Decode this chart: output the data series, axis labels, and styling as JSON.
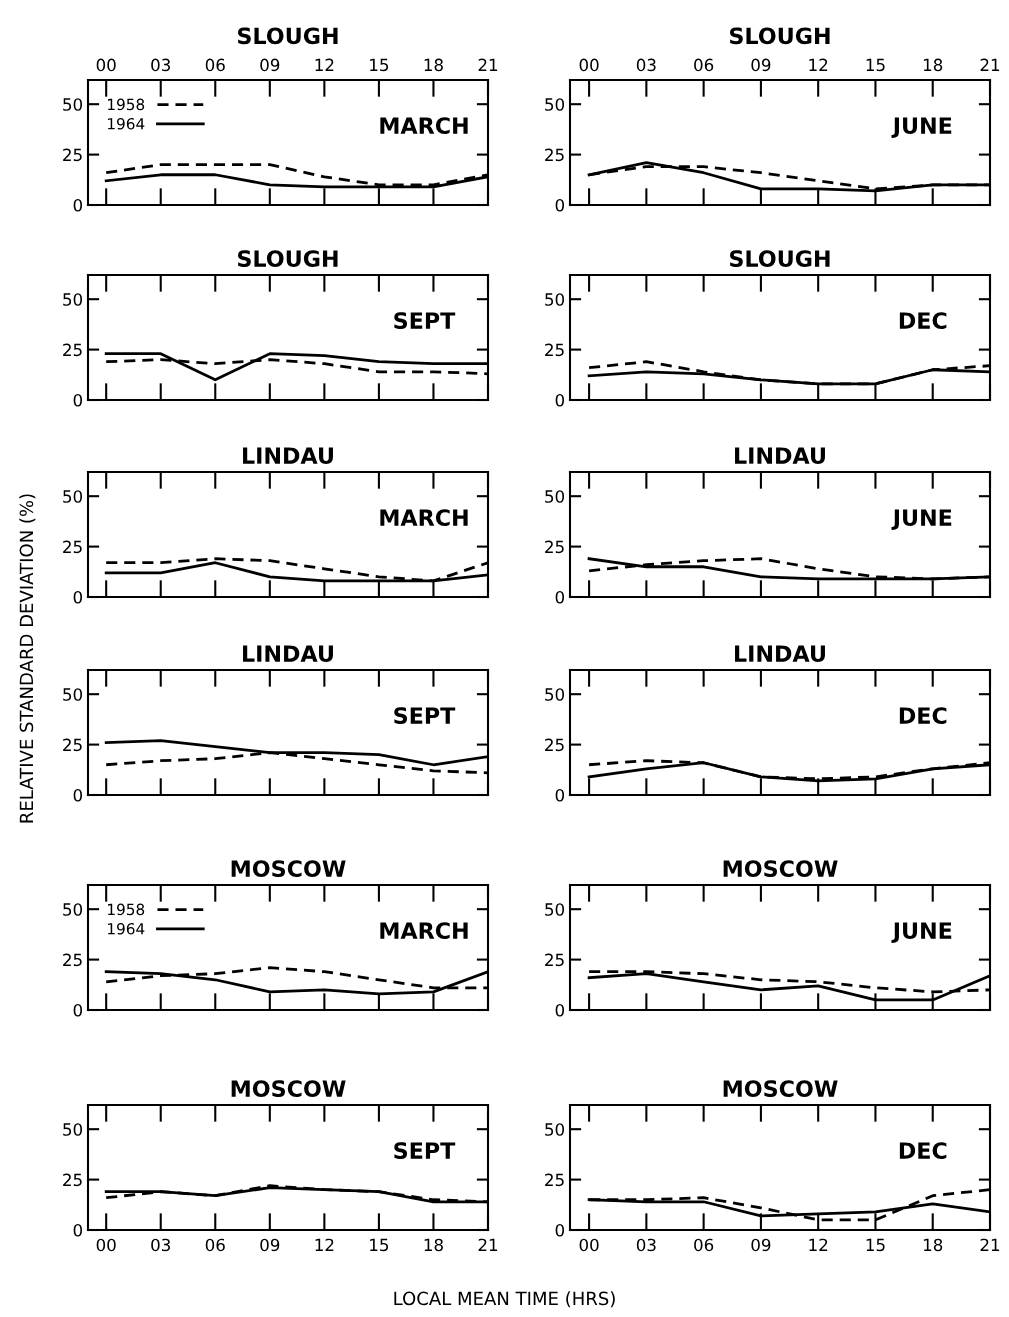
{
  "chart_data": [
    {
      "type": "line",
      "title": "SLOUGH",
      "annotations": [
        "MARCH"
      ],
      "legend": "top left",
      "tick_labels": "y",
      "xlim": [
        -1,
        21
      ],
      "ylim": [
        0,
        62
      ],
      "yticks": [
        0,
        25,
        50
      ],
      "xticks": [
        {
          "value": 0,
          "label": null
        },
        {
          "value": 3,
          "label": null
        },
        {
          "value": 6,
          "label": null
        },
        {
          "value": 9,
          "label": null
        },
        {
          "value": 12,
          "label": null
        },
        {
          "value": 15,
          "label": null
        },
        {
          "value": 18,
          "label": null
        },
        {
          "value": 21,
          "label": null
        }
      ],
      "x2lim": [
        -1,
        21
      ],
      "x2ticks": [
        {
          "value": 0,
          "label": "00"
        },
        {
          "value": 3,
          "label": "03"
        },
        {
          "value": 6,
          "label": "06"
        },
        {
          "value": 9,
          "label": "09"
        },
        12,
        15,
        18,
        21
      ],
      "x": [
        0,
        3,
        6,
        9,
        12,
        15,
        18,
        21
      ],
      "series": [
        {
          "name": "1958",
          "color": "#000000",
          "line_style": "dashed",
          "values": [
            16,
            20,
            20,
            20,
            14,
            10,
            10,
            15
          ]
        },
        {
          "name": "1964",
          "color": "#000000",
          "line_style": "solid",
          "values": [
            12,
            15,
            15,
            10,
            9,
            9,
            9,
            14
          ]
        }
      ]
    },
    {
      "type": "line",
      "title": "SLOUGH",
      "annotations": [
        "JUNE"
      ],
      "tick_labels": "y",
      "xlim": [
        -1,
        21
      ],
      "ylim": [
        0,
        62
      ],
      "yticks": [
        0,
        25,
        50
      ],
      "xticks": [
        {
          "value": 0,
          "label": null
        },
        {
          "value": 3,
          "label": null
        },
        {
          "value": 6,
          "label": null
        },
        {
          "value": 9,
          "label": null
        },
        {
          "value": 12,
          "label": null
        },
        {
          "value": 15,
          "label": null
        },
        {
          "value": 18,
          "label": null
        },
        {
          "value": 21,
          "label": null
        }
      ],
      "x2lim": [
        -1,
        21
      ],
      "x2ticks": [
        {
          "value": 0,
          "label": "00"
        },
        {
          "value": 3,
          "label": "03"
        },
        {
          "value": 6,
          "label": "06"
        },
        {
          "value": 9,
          "label": "09"
        },
        12,
        15,
        18,
        21
      ],
      "x": [
        0,
        3,
        6,
        9,
        12,
        15,
        18,
        21
      ],
      "series": [
        {
          "color": "#000000",
          "line_style": "dashed",
          "values": [
            15,
            19,
            19,
            16,
            12,
            8,
            10,
            10
          ]
        },
        {
          "color": "#000000",
          "line_style": "solid",
          "values": [
            15,
            21,
            16,
            8,
            8,
            7,
            10,
            10
          ]
        }
      ]
    },
    {
      "type": "line",
      "title": "SLOUGH",
      "annotations": [
        "SEPT"
      ],
      "tick_labels": "y",
      "xlim": [
        -1,
        21
      ],
      "ylim": [
        0,
        62
      ],
      "yticks": [
        0,
        25,
        50
      ],
      "xticks": [
        {
          "value": 0,
          "label": null
        },
        {
          "value": 3,
          "label": null
        },
        {
          "value": 6,
          "label": null
        },
        {
          "value": 9,
          "label": null
        },
        {
          "value": 12,
          "label": null
        },
        {
          "value": 15,
          "label": null
        },
        {
          "value": 18,
          "label": null
        },
        {
          "value": 21,
          "label": null
        }
      ],
      "x": [
        0,
        3,
        6,
        9,
        12,
        15,
        18,
        21
      ],
      "series": [
        {
          "color": "#000000",
          "line_style": "dashed",
          "values": [
            19,
            20,
            18,
            20,
            18,
            14,
            14,
            13
          ]
        },
        {
          "color": "#000000",
          "line_style": "solid",
          "values": [
            23,
            23,
            10,
            23,
            22,
            19,
            18,
            18
          ]
        }
      ]
    },
    {
      "type": "line",
      "title": "SLOUGH",
      "annotations": [
        "DEC"
      ],
      "tick_labels": "y",
      "xlim": [
        -1,
        21
      ],
      "ylim": [
        0,
        62
      ],
      "yticks": [
        0,
        25,
        50
      ],
      "xticks": [
        {
          "value": 0,
          "label": null
        },
        {
          "value": 3,
          "label": null
        },
        {
          "value": 6,
          "label": null
        },
        {
          "value": 9,
          "label": null
        },
        {
          "value": 12,
          "label": null
        },
        {
          "value": 15,
          "label": null
        },
        {
          "value": 18,
          "label": null
        },
        {
          "value": 21,
          "label": null
        }
      ],
      "x": [
        0,
        3,
        6,
        9,
        12,
        15,
        18,
        21
      ],
      "series": [
        {
          "color": "#000000",
          "line_style": "dashed",
          "values": [
            16,
            19,
            14,
            10,
            8,
            8,
            15,
            17
          ]
        },
        {
          "color": "#000000",
          "line_style": "solid",
          "values": [
            12,
            14,
            13,
            10,
            8,
            8,
            15,
            14
          ]
        }
      ]
    },
    {
      "type": "line",
      "title": "LINDAU",
      "annotations": [
        "MARCH"
      ],
      "tick_labels": "y",
      "xlim": [
        -1,
        21
      ],
      "ylim": [
        0,
        62
      ],
      "yticks": [
        0,
        25,
        50
      ],
      "xticks": [
        {
          "value": 0,
          "label": null
        },
        {
          "value": 3,
          "label": null
        },
        {
          "value": 6,
          "label": null
        },
        {
          "value": 9,
          "label": null
        },
        {
          "value": 12,
          "label": null
        },
        {
          "value": 15,
          "label": null
        },
        {
          "value": 18,
          "label": null
        },
        {
          "value": 21,
          "label": null
        }
      ],
      "x": [
        0,
        3,
        6,
        9,
        12,
        15,
        18,
        21
      ],
      "series": [
        {
          "color": "#000000",
          "line_style": "dashed",
          "values": [
            17,
            17,
            19,
            18,
            14,
            10,
            8,
            17
          ]
        },
        {
          "color": "#000000",
          "line_style": "solid",
          "values": [
            12,
            12,
            17,
            10,
            8,
            8,
            8,
            11
          ]
        }
      ]
    },
    {
      "type": "line",
      "title": "LINDAU",
      "annotations": [
        "JUNE"
      ],
      "tick_labels": "y",
      "xlim": [
        -1,
        21
      ],
      "ylim": [
        0,
        62
      ],
      "yticks": [
        0,
        25,
        50
      ],
      "xticks": [
        {
          "value": 0,
          "label": null
        },
        {
          "value": 3,
          "label": null
        },
        {
          "value": 6,
          "label": null
        },
        {
          "value": 9,
          "label": null
        },
        {
          "value": 12,
          "label": null
        },
        {
          "value": 15,
          "label": null
        },
        {
          "value": 18,
          "label": null
        },
        {
          "value": 21,
          "label": null
        }
      ],
      "x": [
        0,
        3,
        6,
        9,
        12,
        15,
        18,
        21
      ],
      "series": [
        {
          "color": "#000000",
          "line_style": "dashed",
          "values": [
            13,
            16,
            18,
            19,
            14,
            10,
            9,
            10
          ]
        },
        {
          "color": "#000000",
          "line_style": "solid",
          "values": [
            19,
            15,
            15,
            10,
            9,
            9,
            9,
            10
          ]
        }
      ]
    },
    {
      "type": "line",
      "title": "LINDAU",
      "annotations": [
        "SEPT"
      ],
      "ylabel": "RELATIVE STANDARD DEVIATION (%)",
      "tick_labels": "y",
      "xlim": [
        -1,
        21
      ],
      "ylim": [
        0,
        62
      ],
      "yticks": [
        0,
        25,
        50
      ],
      "xticks": [
        {
          "value": 0,
          "label": null
        },
        {
          "value": 3,
          "label": null
        },
        {
          "value": 6,
          "label": null
        },
        {
          "value": 9,
          "label": null
        },
        {
          "value": 12,
          "label": null
        },
        {
          "value": 15,
          "label": null
        },
        {
          "value": 18,
          "label": null
        },
        {
          "value": 21,
          "label": null
        }
      ],
      "x": [
        0,
        3,
        6,
        9,
        12,
        15,
        18,
        21
      ],
      "series": [
        {
          "color": "#000000",
          "line_style": "dashed",
          "values": [
            15,
            17,
            18,
            21,
            18,
            15,
            12,
            11
          ]
        },
        {
          "color": "#000000",
          "line_style": "solid",
          "values": [
            26,
            27,
            24,
            21,
            21,
            20,
            15,
            19
          ]
        }
      ]
    },
    {
      "type": "line",
      "title": "LINDAU",
      "annotations": [
        "DEC"
      ],
      "tick_labels": "y",
      "xlim": [
        -1,
        21
      ],
      "ylim": [
        0,
        62
      ],
      "yticks": [
        0,
        25,
        50
      ],
      "xticks": [
        {
          "value": 0,
          "label": null
        },
        {
          "value": 3,
          "label": null
        },
        {
          "value": 6,
          "label": null
        },
        {
          "value": 9,
          "label": null
        },
        {
          "value": 12,
          "label": null
        },
        {
          "value": 15,
          "label": null
        },
        {
          "value": 18,
          "label": null
        },
        {
          "value": 21,
          "label": null
        }
      ],
      "x": [
        0,
        3,
        6,
        9,
        12,
        15,
        18,
        21
      ],
      "series": [
        {
          "color": "#000000",
          "line_style": "dashed",
          "values": [
            15,
            17,
            16,
            9,
            8,
            9,
            13,
            16
          ]
        },
        {
          "color": "#000000",
          "line_style": "solid",
          "values": [
            9,
            13,
            16,
            9,
            7,
            8,
            13,
            15
          ]
        }
      ]
    },
    {
      "type": "line",
      "title": "MOSCOW",
      "annotations": [
        "MARCH"
      ],
      "legend": "top left",
      "tick_labels": "y",
      "xlim": [
        -1,
        21
      ],
      "ylim": [
        0,
        62
      ],
      "yticks": [
        0,
        25,
        50
      ],
      "xticks": [
        {
          "value": 0,
          "label": null
        },
        {
          "value": 3,
          "label": null
        },
        {
          "value": 6,
          "label": null
        },
        {
          "value": 9,
          "label": null
        },
        {
          "value": 12,
          "label": null
        },
        {
          "value": 15,
          "label": null
        },
        {
          "value": 18,
          "label": null
        },
        {
          "value": 21,
          "label": null
        }
      ],
      "x": [
        0,
        3,
        6,
        9,
        12,
        15,
        18,
        21
      ],
      "series": [
        {
          "name": "1958",
          "color": "#000000",
          "line_style": "dashed",
          "values": [
            14,
            17,
            18,
            21,
            19,
            15,
            11,
            11
          ]
        },
        {
          "name": "1964",
          "color": "#000000",
          "line_style": "solid",
          "values": [
            19,
            18,
            15,
            9,
            10,
            8,
            9,
            19
          ]
        }
      ]
    },
    {
      "type": "line",
      "title": "MOSCOW",
      "annotations": [
        "JUNE"
      ],
      "tick_labels": "y",
      "xlim": [
        -1,
        21
      ],
      "ylim": [
        0,
        62
      ],
      "yticks": [
        0,
        25,
        50
      ],
      "xticks": [
        {
          "value": 0,
          "label": null
        },
        {
          "value": 3,
          "label": null
        },
        {
          "value": 6,
          "label": null
        },
        {
          "value": 9,
          "label": null
        },
        {
          "value": 12,
          "label": null
        },
        {
          "value": 15,
          "label": null
        },
        {
          "value": 18,
          "label": null
        },
        {
          "value": 21,
          "label": null
        }
      ],
      "x": [
        0,
        3,
        6,
        9,
        12,
        15,
        18,
        21
      ],
      "series": [
        {
          "color": "#000000",
          "line_style": "dashed",
          "values": [
            19,
            19,
            18,
            15,
            14,
            11,
            9,
            10
          ]
        },
        {
          "color": "#000000",
          "line_style": "solid",
          "values": [
            16,
            18,
            14,
            10,
            12,
            5,
            5,
            17
          ]
        }
      ]
    },
    {
      "type": "line",
      "title": "MOSCOW",
      "annotations": [
        "SEPT"
      ],
      "xlabel": "LOCAL MEAN TIME (HRS)",
      "xlim": [
        -1,
        21
      ],
      "ylim": [
        0,
        62
      ],
      "yticks": [
        0,
        25,
        50
      ],
      "xticks": [
        {
          "value": 0,
          "label": "00"
        },
        {
          "value": 3,
          "label": "03"
        },
        {
          "value": 6,
          "label": "06"
        },
        {
          "value": 9,
          "label": "09"
        },
        12,
        15,
        18,
        21
      ],
      "x": [
        0,
        3,
        6,
        9,
        12,
        15,
        18,
        21
      ],
      "series": [
        {
          "color": "#000000",
          "line_style": "dashed",
          "values": [
            16,
            19,
            17,
            22,
            20,
            19,
            15,
            14
          ]
        },
        {
          "color": "#000000",
          "line_style": "solid",
          "values": [
            19,
            19,
            17,
            21,
            20,
            19,
            14,
            14
          ]
        }
      ]
    },
    {
      "type": "line",
      "title": "MOSCOW",
      "annotations": [
        "DEC"
      ],
      "xlim": [
        -1,
        21
      ],
      "ylim": [
        0,
        62
      ],
      "yticks": [
        0,
        25,
        50
      ],
      "xticks": [
        {
          "value": 0,
          "label": "00"
        },
        {
          "value": 3,
          "label": "03"
        },
        {
          "value": 6,
          "label": "06"
        },
        {
          "value": 9,
          "label": "09"
        },
        12,
        15,
        18,
        21
      ],
      "x": [
        0,
        3,
        6,
        9,
        12,
        15,
        18,
        21
      ],
      "series": [
        {
          "color": "#000000",
          "line_style": "dashed",
          "values": [
            15,
            15,
            16,
            11,
            5,
            5,
            17,
            20
          ]
        },
        {
          "color": "#000000",
          "line_style": "solid",
          "values": [
            15,
            14,
            14,
            7,
            8,
            9,
            13,
            9
          ]
        }
      ]
    }
  ]
}
